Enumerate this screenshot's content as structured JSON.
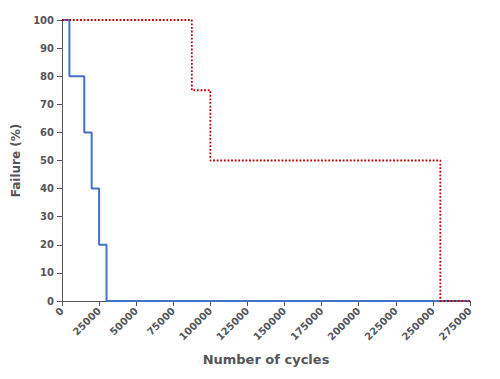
{
  "chart_data": {
    "type": "line",
    "xlabel": "Number of cycles",
    "ylabel": "Failure (%)",
    "series": [
      {
        "x": [
          0,
          5000,
          5000,
          15000,
          15000,
          20000,
          20000,
          25000,
          25000,
          30000,
          30000,
          35000,
          35000,
          275000
        ],
        "values": [
          100,
          100,
          80,
          80,
          60,
          60,
          40,
          40,
          20,
          20,
          0,
          0,
          0,
          0
        ],
        "color": "#4472C4",
        "line_style": "solid"
      },
      {
        "x": [
          0,
          87500,
          87500,
          100000,
          100000,
          255000,
          255000,
          275000
        ],
        "values": [
          100,
          100,
          75,
          75,
          50,
          50,
          0,
          0
        ],
        "color": "#C00000",
        "line_style": "dotted"
      }
    ],
    "xlim": [
      0,
      275000
    ],
    "ylim": [
      0,
      100
    ],
    "xticks": [
      0,
      25000,
      50000,
      75000,
      100000,
      125000,
      150000,
      175000,
      200000,
      225000,
      250000,
      275000
    ],
    "yticks": [
      0,
      10,
      20,
      30,
      40,
      50,
      60,
      70,
      80,
      90,
      100
    ],
    "grid": false
  }
}
